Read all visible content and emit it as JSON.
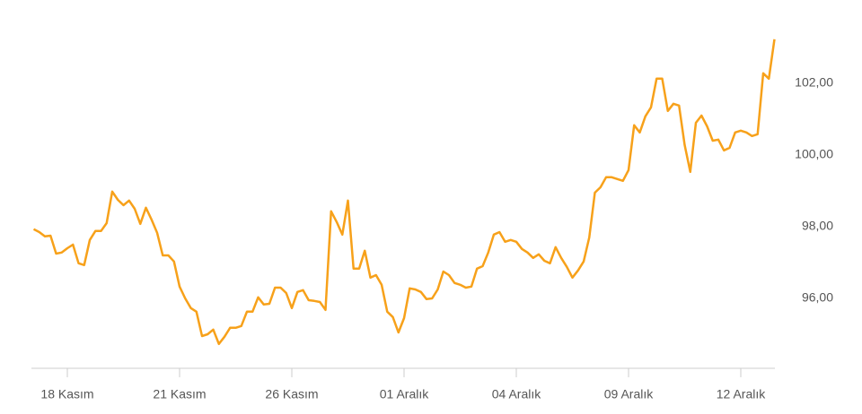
{
  "chart_data": {
    "type": "line",
    "categories": [
      null,
      null,
      null,
      null,
      null,
      null,
      "18 Kasım",
      null,
      null,
      null,
      null,
      null,
      null,
      null,
      null,
      null,
      null,
      null,
      null,
      null,
      null,
      null,
      null,
      null,
      null,
      null,
      "21 Kasım",
      null,
      null,
      null,
      null,
      null,
      null,
      null,
      null,
      null,
      null,
      null,
      null,
      null,
      null,
      null,
      null,
      null,
      null,
      null,
      "26 Kasım",
      null,
      null,
      null,
      null,
      null,
      null,
      null,
      null,
      null,
      null,
      null,
      null,
      null,
      null,
      null,
      null,
      null,
      null,
      null,
      "01 Aralık",
      null,
      null,
      null,
      null,
      null,
      null,
      null,
      null,
      null,
      null,
      null,
      null,
      null,
      null,
      null,
      null,
      null,
      null,
      null,
      "04 Aralık",
      null,
      null,
      null,
      null,
      null,
      null,
      null,
      null,
      null,
      null,
      null,
      null,
      null,
      null,
      null,
      null,
      null,
      null,
      null,
      "09 Aralık",
      null,
      null,
      null,
      null,
      null,
      null,
      null,
      null,
      null,
      null,
      null,
      null,
      null,
      null,
      null,
      null,
      null,
      null,
      null,
      "12 Aralık",
      null,
      null,
      null,
      null,
      null,
      null
    ],
    "values": [
      97.93,
      97.85,
      97.73,
      97.75,
      97.25,
      97.28,
      97.4,
      97.5,
      96.98,
      96.93,
      97.63,
      97.88,
      97.88,
      98.1,
      98.98,
      98.75,
      98.6,
      98.73,
      98.5,
      98.08,
      98.53,
      98.2,
      97.83,
      97.2,
      97.2,
      97.03,
      96.33,
      96.0,
      95.73,
      95.63,
      94.95,
      95.0,
      95.13,
      94.73,
      94.93,
      95.18,
      95.18,
      95.23,
      95.63,
      95.63,
      96.03,
      95.83,
      95.85,
      96.3,
      96.3,
      96.15,
      95.73,
      96.18,
      96.23,
      95.95,
      95.93,
      95.9,
      95.68,
      98.43,
      98.13,
      97.78,
      98.73,
      96.83,
      96.83,
      97.33,
      96.58,
      96.65,
      96.38,
      95.63,
      95.48,
      95.05,
      95.45,
      96.28,
      96.25,
      96.18,
      95.98,
      96.0,
      96.25,
      96.75,
      96.65,
      96.43,
      96.38,
      96.3,
      96.33,
      96.83,
      96.9,
      97.28,
      97.78,
      97.85,
      97.58,
      97.63,
      97.58,
      97.38,
      97.28,
      97.13,
      97.23,
      97.05,
      96.98,
      97.43,
      97.13,
      96.88,
      96.58,
      96.78,
      97.03,
      97.7,
      98.95,
      99.1,
      99.38,
      99.38,
      99.33,
      99.28,
      99.58,
      100.83,
      100.63,
      101.08,
      101.33,
      102.13,
      102.13,
      101.23,
      101.43,
      101.38,
      100.28,
      99.53,
      100.9,
      101.1,
      100.8,
      100.4,
      100.43,
      100.13,
      100.2,
      100.63,
      100.68,
      100.63,
      100.53,
      100.58,
      102.28,
      102.13,
      103.23
    ],
    "color": "#f7a11a",
    "ylim": [
      94.05,
      103.6
    ],
    "yticks": [
      {
        "value": 96,
        "label": "96,00"
      },
      {
        "value": 98,
        "label": "98,00"
      },
      {
        "value": 100,
        "label": "100,00"
      },
      {
        "value": 102,
        "label": "102,00"
      }
    ],
    "grid": false
  }
}
